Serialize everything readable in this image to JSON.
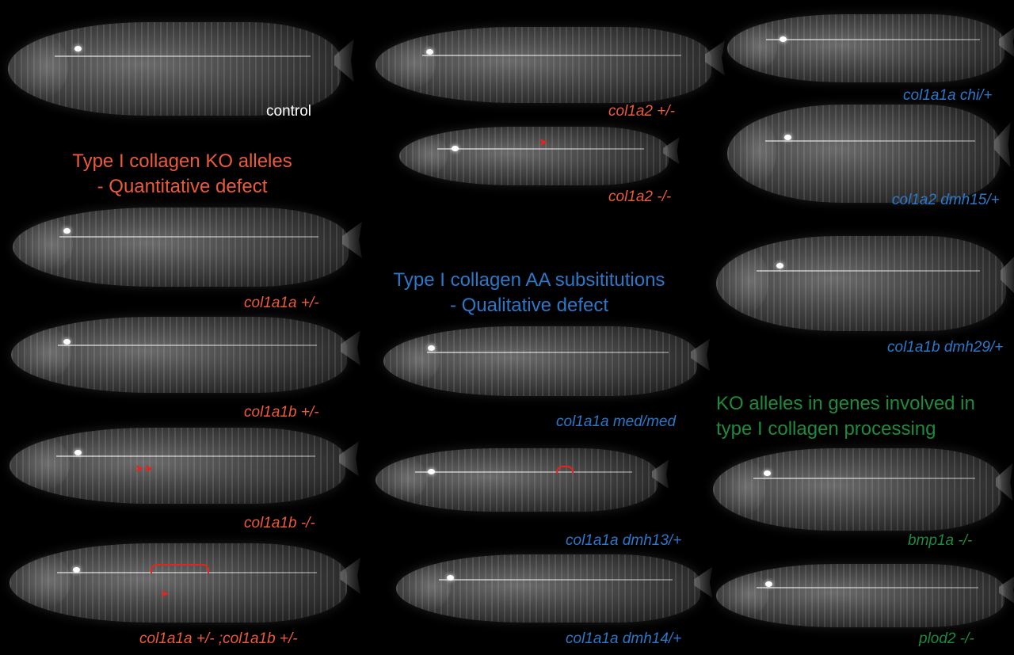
{
  "headings": {
    "ko": "Type  I  collagen  KO  alleles\n- Quantitative defect",
    "aa": "Type I collagen AA subsititutions\n- Qualitative defect",
    "processing": "KO alleles in genes involved in\ntype I collagen processing"
  },
  "colors": {
    "background": "#000000",
    "ko": "#ec5a3a",
    "aa": "#2b78c8",
    "processing": "#1f8a3a",
    "control": "#ffffff",
    "arrow": "#e8231c"
  },
  "panels": {
    "control": "control",
    "col1a1a_het": "col1a1a +/-",
    "col1a1b_het": "col1a1b +/-",
    "col1a1b_ko": "col1a1b -/-",
    "double_het": "col1a1a +/- ;col1a1b +/-",
    "col1a2_het": "col1a2 +/-",
    "col1a2_ko": "col1a2 -/-",
    "med": "col1a1a med/med",
    "dmh13": "col1a1a dmh13/+",
    "dmh14": "col1a1a dmh14/+",
    "chi": "col1a1a chi/+",
    "dmh15": "col1a2 dmh15/+",
    "dmh29": "col1a1b dmh29/+",
    "bmp1a": "bmp1a -/-",
    "plod2": "plod2 -/-"
  }
}
